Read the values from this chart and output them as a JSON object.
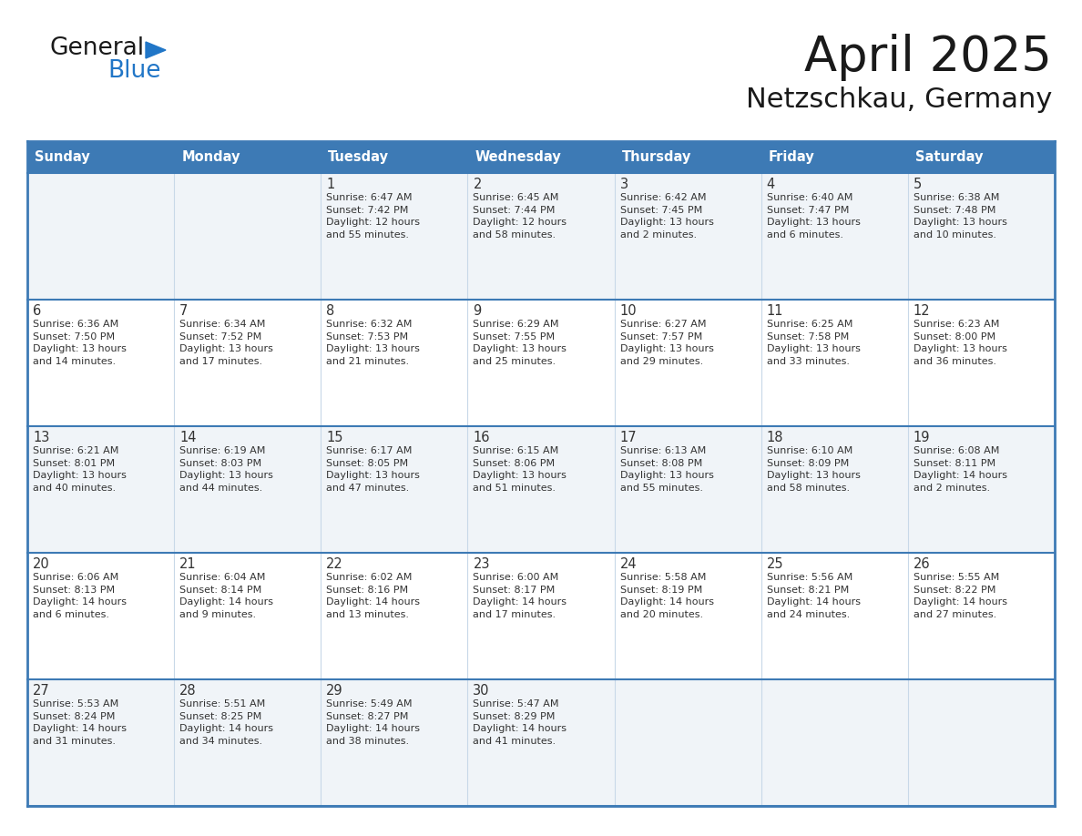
{
  "title": "April 2025",
  "subtitle": "Netzschkau, Germany",
  "header_bg_color": "#3d7ab5",
  "header_text_color": "#ffffff",
  "row_bg_colors": [
    "#f0f4f8",
    "#ffffff"
  ],
  "cell_text_color": "#333333",
  "border_color": "#3d7ab5",
  "separator_color": "#3d7ab5",
  "inner_line_color": "#c8d8e8",
  "day_names": [
    "Sunday",
    "Monday",
    "Tuesday",
    "Wednesday",
    "Thursday",
    "Friday",
    "Saturday"
  ],
  "logo_general_color": "#1a1a1a",
  "logo_blue_color": "#2176c7",
  "logo_triangle_color": "#2176c7",
  "title_color": "#1a1a1a",
  "subtitle_color": "#1a1a1a",
  "weeks": [
    [
      {
        "day": "",
        "info": ""
      },
      {
        "day": "",
        "info": ""
      },
      {
        "day": "1",
        "info": "Sunrise: 6:47 AM\nSunset: 7:42 PM\nDaylight: 12 hours\nand 55 minutes."
      },
      {
        "day": "2",
        "info": "Sunrise: 6:45 AM\nSunset: 7:44 PM\nDaylight: 12 hours\nand 58 minutes."
      },
      {
        "day": "3",
        "info": "Sunrise: 6:42 AM\nSunset: 7:45 PM\nDaylight: 13 hours\nand 2 minutes."
      },
      {
        "day": "4",
        "info": "Sunrise: 6:40 AM\nSunset: 7:47 PM\nDaylight: 13 hours\nand 6 minutes."
      },
      {
        "day": "5",
        "info": "Sunrise: 6:38 AM\nSunset: 7:48 PM\nDaylight: 13 hours\nand 10 minutes."
      }
    ],
    [
      {
        "day": "6",
        "info": "Sunrise: 6:36 AM\nSunset: 7:50 PM\nDaylight: 13 hours\nand 14 minutes."
      },
      {
        "day": "7",
        "info": "Sunrise: 6:34 AM\nSunset: 7:52 PM\nDaylight: 13 hours\nand 17 minutes."
      },
      {
        "day": "8",
        "info": "Sunrise: 6:32 AM\nSunset: 7:53 PM\nDaylight: 13 hours\nand 21 minutes."
      },
      {
        "day": "9",
        "info": "Sunrise: 6:29 AM\nSunset: 7:55 PM\nDaylight: 13 hours\nand 25 minutes."
      },
      {
        "day": "10",
        "info": "Sunrise: 6:27 AM\nSunset: 7:57 PM\nDaylight: 13 hours\nand 29 minutes."
      },
      {
        "day": "11",
        "info": "Sunrise: 6:25 AM\nSunset: 7:58 PM\nDaylight: 13 hours\nand 33 minutes."
      },
      {
        "day": "12",
        "info": "Sunrise: 6:23 AM\nSunset: 8:00 PM\nDaylight: 13 hours\nand 36 minutes."
      }
    ],
    [
      {
        "day": "13",
        "info": "Sunrise: 6:21 AM\nSunset: 8:01 PM\nDaylight: 13 hours\nand 40 minutes."
      },
      {
        "day": "14",
        "info": "Sunrise: 6:19 AM\nSunset: 8:03 PM\nDaylight: 13 hours\nand 44 minutes."
      },
      {
        "day": "15",
        "info": "Sunrise: 6:17 AM\nSunset: 8:05 PM\nDaylight: 13 hours\nand 47 minutes."
      },
      {
        "day": "16",
        "info": "Sunrise: 6:15 AM\nSunset: 8:06 PM\nDaylight: 13 hours\nand 51 minutes."
      },
      {
        "day": "17",
        "info": "Sunrise: 6:13 AM\nSunset: 8:08 PM\nDaylight: 13 hours\nand 55 minutes."
      },
      {
        "day": "18",
        "info": "Sunrise: 6:10 AM\nSunset: 8:09 PM\nDaylight: 13 hours\nand 58 minutes."
      },
      {
        "day": "19",
        "info": "Sunrise: 6:08 AM\nSunset: 8:11 PM\nDaylight: 14 hours\nand 2 minutes."
      }
    ],
    [
      {
        "day": "20",
        "info": "Sunrise: 6:06 AM\nSunset: 8:13 PM\nDaylight: 14 hours\nand 6 minutes."
      },
      {
        "day": "21",
        "info": "Sunrise: 6:04 AM\nSunset: 8:14 PM\nDaylight: 14 hours\nand 9 minutes."
      },
      {
        "day": "22",
        "info": "Sunrise: 6:02 AM\nSunset: 8:16 PM\nDaylight: 14 hours\nand 13 minutes."
      },
      {
        "day": "23",
        "info": "Sunrise: 6:00 AM\nSunset: 8:17 PM\nDaylight: 14 hours\nand 17 minutes."
      },
      {
        "day": "24",
        "info": "Sunrise: 5:58 AM\nSunset: 8:19 PM\nDaylight: 14 hours\nand 20 minutes."
      },
      {
        "day": "25",
        "info": "Sunrise: 5:56 AM\nSunset: 8:21 PM\nDaylight: 14 hours\nand 24 minutes."
      },
      {
        "day": "26",
        "info": "Sunrise: 5:55 AM\nSunset: 8:22 PM\nDaylight: 14 hours\nand 27 minutes."
      }
    ],
    [
      {
        "day": "27",
        "info": "Sunrise: 5:53 AM\nSunset: 8:24 PM\nDaylight: 14 hours\nand 31 minutes."
      },
      {
        "day": "28",
        "info": "Sunrise: 5:51 AM\nSunset: 8:25 PM\nDaylight: 14 hours\nand 34 minutes."
      },
      {
        "day": "29",
        "info": "Sunrise: 5:49 AM\nSunset: 8:27 PM\nDaylight: 14 hours\nand 38 minutes."
      },
      {
        "day": "30",
        "info": "Sunrise: 5:47 AM\nSunset: 8:29 PM\nDaylight: 14 hours\nand 41 minutes."
      },
      {
        "day": "",
        "info": ""
      },
      {
        "day": "",
        "info": ""
      },
      {
        "day": "",
        "info": ""
      }
    ]
  ]
}
